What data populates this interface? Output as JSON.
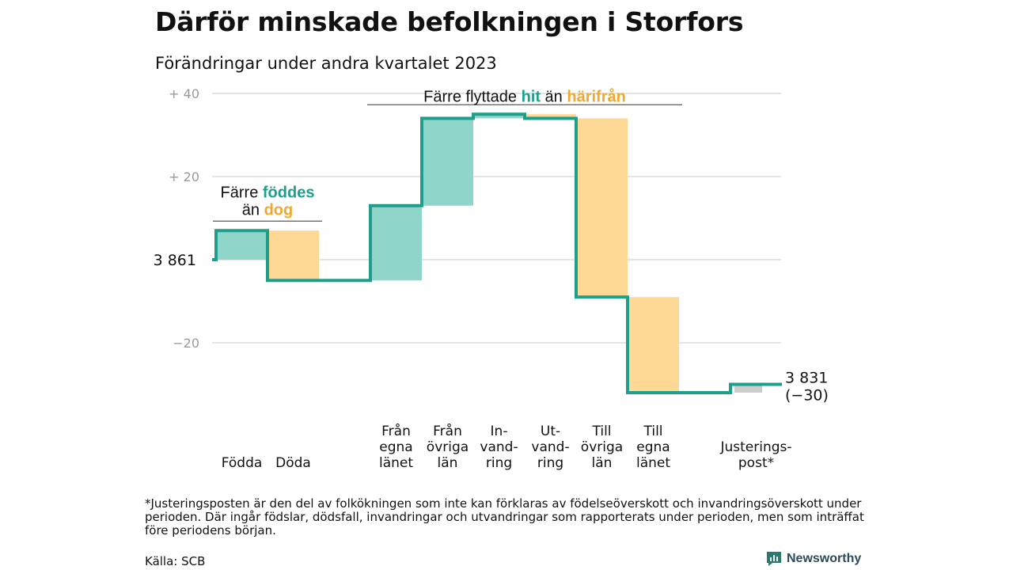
{
  "title": "Därför minskade befolkningen i Storfors",
  "subtitle": "Förändringar under andra kvartalet 2023",
  "footnote": "*Justeringsposten är den del av folkökningen som inte kan förklaras av födelseöverskott och invandringsöverskott under perioden. Där ingår födslar, dödsfall, invandringar och utvandringar som rapporterats under perioden, men som inträffat före periodens början.",
  "source": "Källa: SCB",
  "brand": "Newsworthy",
  "colors": {
    "teal": "#1f9e8c",
    "teal_fill": "#8fd5ca",
    "orange_fill": "#fdd995",
    "orange_text": "#f0a830",
    "gray_fill": "#cccccc",
    "gridline": "#dcdcdc",
    "brand_icon": "#2a7a6e"
  },
  "chart_data": {
    "type": "waterfall",
    "start_label": "3  861",
    "start_value": 3861,
    "end_label": "3 831",
    "end_sublabel": "(−30)",
    "end_value": 3831,
    "yticks": [
      {
        "value": 40,
        "label": "+  40"
      },
      {
        "value": 20,
        "label": "+  20"
      },
      {
        "value": 0,
        "label": ""
      },
      {
        "value": -20,
        "label": "−20"
      }
    ],
    "ylim": [
      -36,
      42
    ],
    "steps": [
      {
        "name": "Födda",
        "label_lines": [
          "Födda"
        ],
        "change": 7,
        "kind": "pos"
      },
      {
        "name": "Döda",
        "label_lines": [
          "Döda"
        ],
        "change": -12,
        "kind": "neg"
      },
      {
        "name": "",
        "label_lines": [],
        "change": 0,
        "kind": "flat"
      },
      {
        "name": "Från egna länet",
        "label_lines": [
          "Från",
          "egna",
          "länet"
        ],
        "change": 18,
        "kind": "pos"
      },
      {
        "name": "Från övriga län",
        "label_lines": [
          "Från",
          "övriga",
          "län"
        ],
        "change": 21,
        "kind": "pos"
      },
      {
        "name": "Invandring",
        "label_lines": [
          "In-",
          "vand-",
          "ring"
        ],
        "change": 1,
        "kind": "pos"
      },
      {
        "name": "Utvandring",
        "label_lines": [
          "Ut-",
          "vand-",
          "ring"
        ],
        "change": -1,
        "kind": "neg"
      },
      {
        "name": "Till övriga län",
        "label_lines": [
          "Till",
          "övriga",
          "län"
        ],
        "change": -43,
        "kind": "neg"
      },
      {
        "name": "Till egna länet",
        "label_lines": [
          "Till",
          "egna",
          "länet"
        ],
        "change": -23,
        "kind": "neg"
      },
      {
        "name": "",
        "label_lines": [],
        "change": 0,
        "kind": "flat"
      },
      {
        "name": "Justeringspost*",
        "label_lines": [
          "Justerings-",
          "post*"
        ],
        "change": 2,
        "kind": "adj"
      }
    ],
    "annotations": [
      {
        "id": "births",
        "line1_pre": "Färre ",
        "line1_hl": "föddes",
        "line1_hl_color": "teal",
        "line2_pre": "än ",
        "line2_hl": "dog",
        "line2_hl_color": "orange_text",
        "from": 0,
        "to": 1
      },
      {
        "id": "moves",
        "line1_pre": "Färre flyttade ",
        "line1_hl": "hit",
        "line1_hl_color": "teal",
        "line1_mid": " än ",
        "line1_hl2": "härifrån",
        "line1_hl2_color": "orange_text",
        "from": 3,
        "to": 8
      }
    ]
  }
}
